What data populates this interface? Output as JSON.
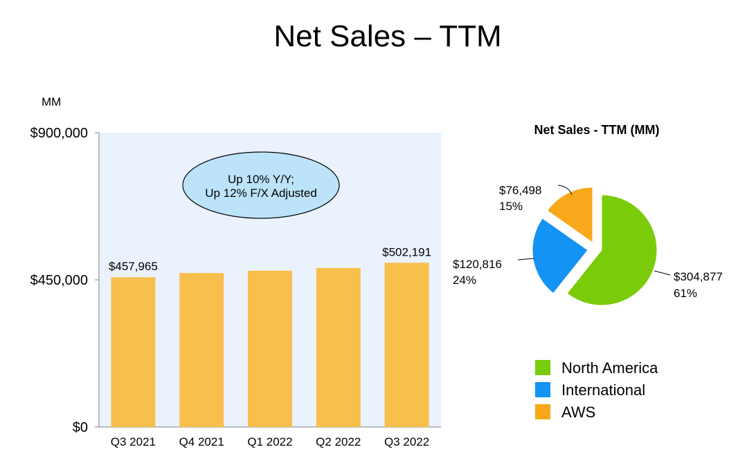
{
  "slide": {
    "title": "Net Sales – TTM"
  },
  "chart_data": [
    {
      "type": "bar",
      "ylabel": "MM",
      "ylim": [
        0,
        900000
      ],
      "ytick_labels": [
        "$0",
        "$450,000",
        "$900,000"
      ],
      "yticks": [
        0,
        450000,
        900000
      ],
      "categories": [
        "Q3 2021",
        "Q4 2021",
        "Q1 2022",
        "Q2 2022",
        "Q3 2022"
      ],
      "values": [
        457965,
        470822,
        477748,
        485902,
        502191
      ],
      "data_labels": [
        "$457,965",
        "",
        "",
        "",
        "$502,191"
      ],
      "annotation": {
        "line1": "Up 10% Y/Y;",
        "line2": "Up 12% F/X Adjusted"
      },
      "colors": {
        "bar": "#F9BF4D",
        "plot_bg": "#EAF2FD",
        "bubble": "#BDE3FA"
      },
      "grid": false
    },
    {
      "type": "pie",
      "title": "Net Sales - TTM (MM)",
      "slices": [
        {
          "name": "North America",
          "value": 304877,
          "value_label": "$304,877",
          "percent_label": "61%",
          "color": "#7ACC0A"
        },
        {
          "name": "International",
          "value": 120816,
          "value_label": "$120,816",
          "percent_label": "24%",
          "color": "#1393F3"
        },
        {
          "name": "AWS",
          "value": 76498,
          "value_label": "$76,498",
          "percent_label": "15%",
          "color": "#F8A81A"
        }
      ],
      "legend_position": "bottom"
    }
  ]
}
